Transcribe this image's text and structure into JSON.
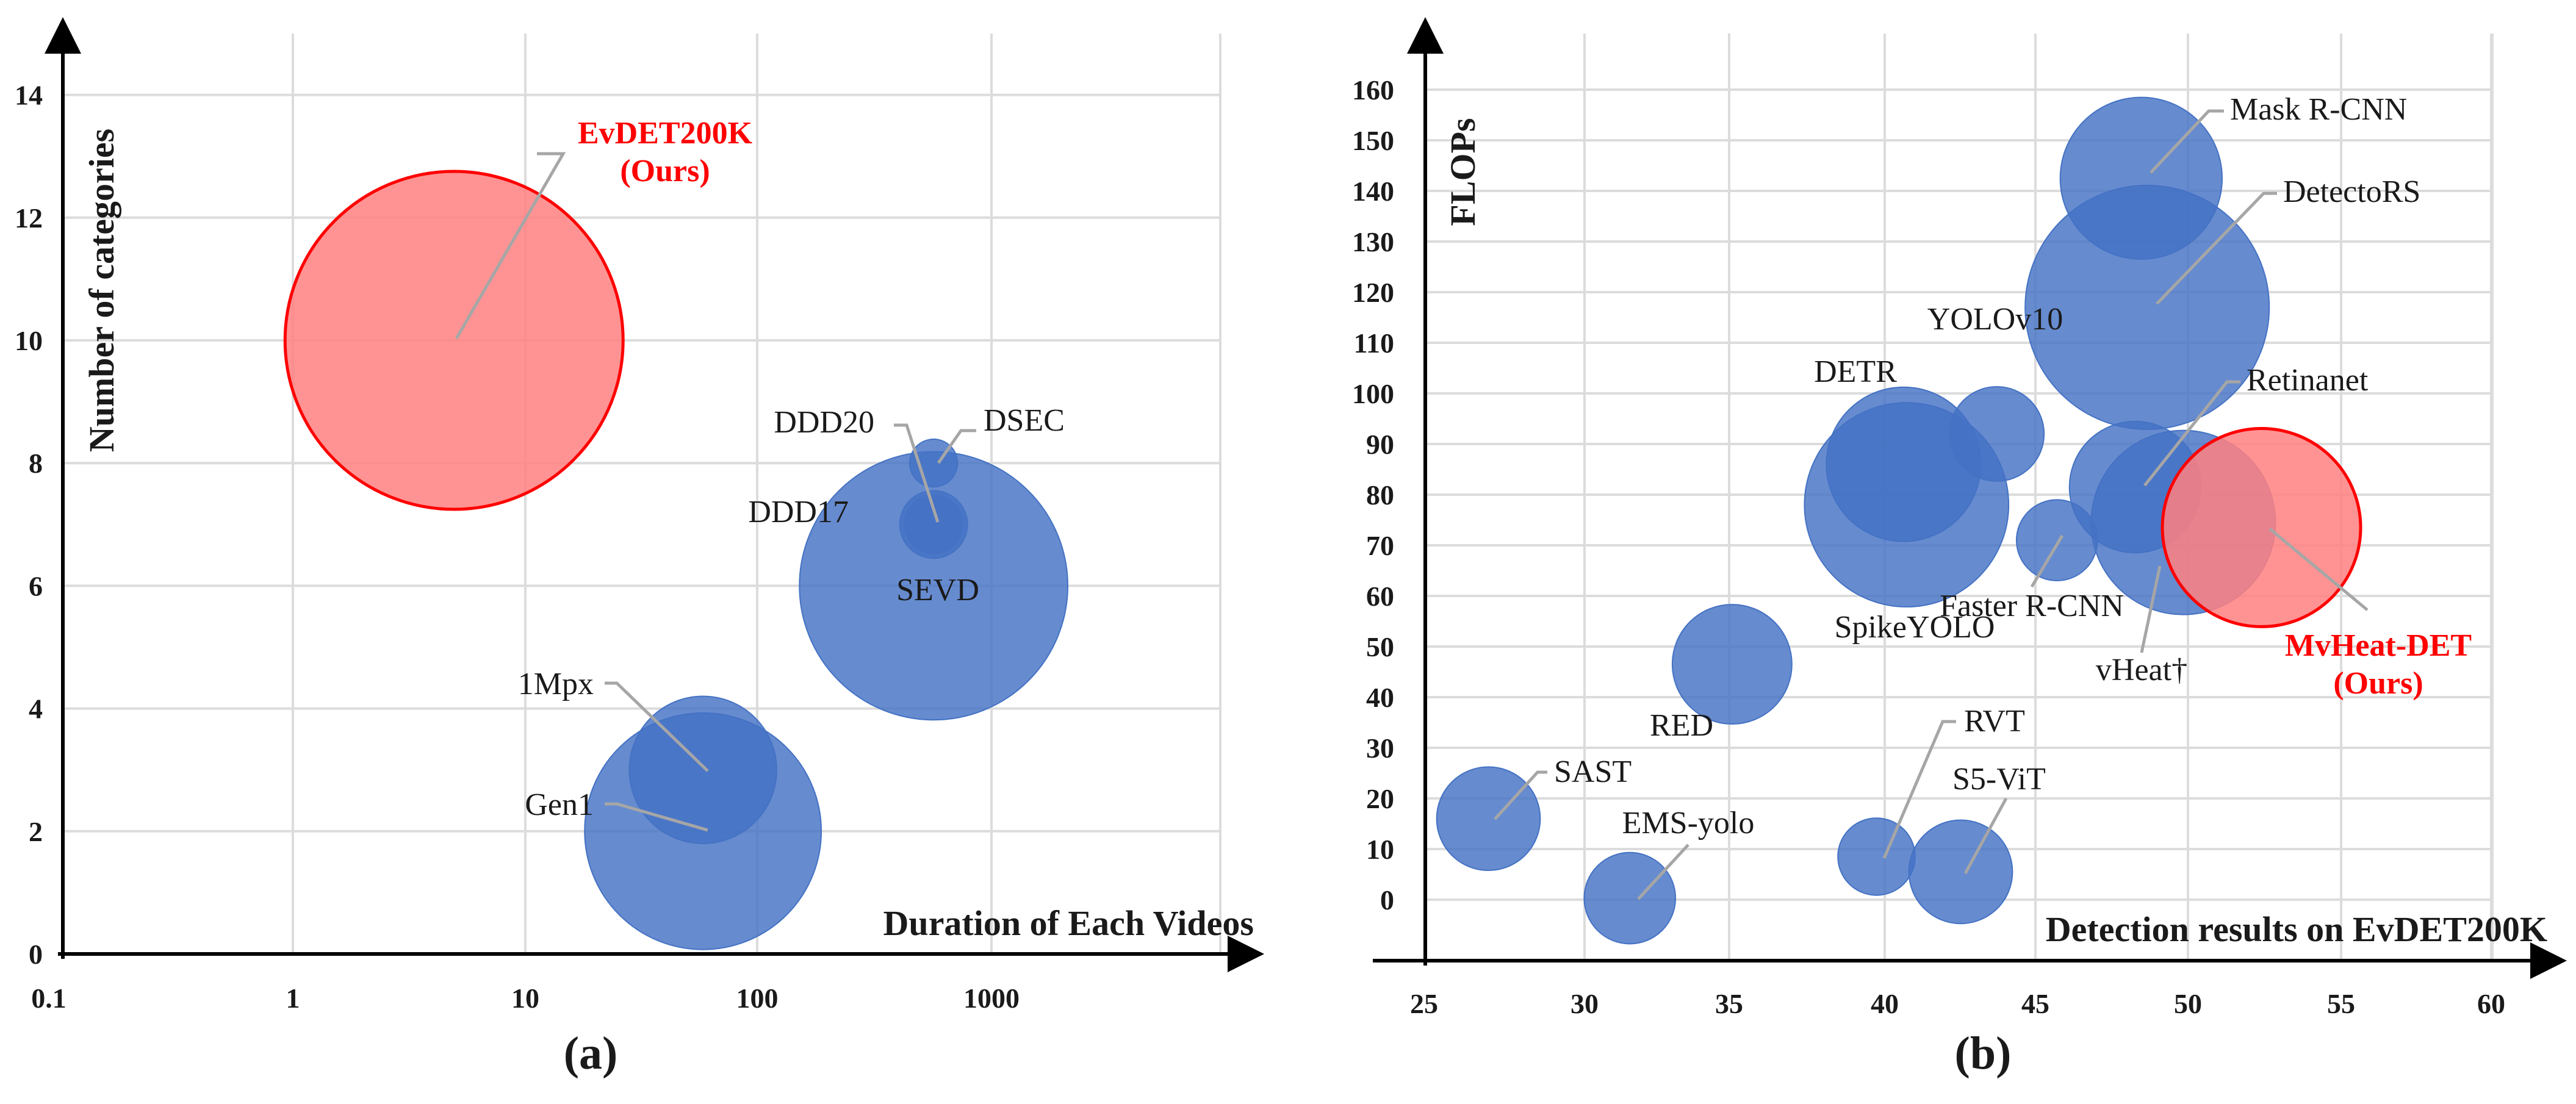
{
  "accent_color": "#ff0000",
  "bubble_color": "#4472c4",
  "ours_fill": "#ff8080",
  "chart_data": [
    {
      "type": "bubble",
      "caption": "(a)",
      "xlabel": "Duration of Each Videos",
      "ylabel": "Number of categories",
      "x_scale": "log",
      "xlim": [
        0.1,
        10000
      ],
      "ylim": [
        0,
        14
      ],
      "x_ticks": [
        "0.1",
        "1",
        "10",
        "100",
        "1000"
      ],
      "y_ticks": [
        "0",
        "2",
        "4",
        "6",
        "8",
        "10",
        "12",
        "14"
      ],
      "grid": true,
      "points": [
        {
          "name": "EvDET200K",
          "sub": "(Ours)",
          "x": 5,
          "y": 10,
          "size": 100,
          "ours": true
        },
        {
          "name": "DSEC",
          "x": 600,
          "y": 8,
          "size": 2
        },
        {
          "name": "DDD20",
          "x": 600,
          "y": 7,
          "size": 4
        },
        {
          "name": "DDD17",
          "x": 600,
          "y": 7,
          "size": 3
        },
        {
          "name": "SEVD",
          "x": 600,
          "y": 6,
          "size": 63
        },
        {
          "name": "1Mpx",
          "x": 60,
          "y": 3,
          "size": 19
        },
        {
          "name": "Gen1",
          "x": 60,
          "y": 2,
          "size": 49
        }
      ]
    },
    {
      "type": "bubble",
      "caption": "(b)",
      "xlabel": "Detection results on EvDET200K",
      "ylabel": "FLOPs",
      "xlim": [
        25,
        60
      ],
      "ylim": [
        0,
        160
      ],
      "x_ticks": [
        "25",
        "30",
        "35",
        "40",
        "45",
        "50",
        "55",
        "60"
      ],
      "y_ticks": [
        "0",
        "10",
        "20",
        "30",
        "40",
        "50",
        "60",
        "70",
        "80",
        "90",
        "100",
        "110",
        "120",
        "130",
        "140",
        "150",
        "160"
      ],
      "grid": true,
      "points": [
        {
          "name": "Mask R-CNN",
          "x": 48.8,
          "y": 142.5,
          "size": 44
        },
        {
          "name": "DetectoRS",
          "x": 49.0,
          "y": 117,
          "size": 100
        },
        {
          "name": "YOLOv10",
          "x": 44.0,
          "y": 92,
          "size": 15
        },
        {
          "name": "DETR",
          "x": 40.9,
          "y": 86,
          "size": 40
        },
        {
          "name": "Retinanet",
          "x": 48.6,
          "y": 81.5,
          "size": 29
        },
        {
          "name": "SpikeYOLO",
          "x": 41.0,
          "y": 78,
          "size": 70
        },
        {
          "name": "vHeat†",
          "x": 50.2,
          "y": 74.5,
          "size": 57
        },
        {
          "name": "Faster R-CNN",
          "x": 46.0,
          "y": 71,
          "size": 11
        },
        {
          "name": "MvHeat-DET",
          "sub": "(Ours)",
          "x": 52.8,
          "y": 73.5,
          "size": 66,
          "ours": true
        },
        {
          "name": "RED",
          "x": 35.2,
          "y": 46.5,
          "size": 24
        },
        {
          "name": "SAST",
          "x": 27.1,
          "y": 16,
          "size": 18
        },
        {
          "name": "RVT",
          "x": 40.0,
          "y": 8.5,
          "size": 10
        },
        {
          "name": "S5-ViT",
          "x": 42.8,
          "y": 5.5,
          "size": 18
        },
        {
          "name": "EMS-yolo",
          "x": 31.8,
          "y": 0.3,
          "size": 14
        }
      ]
    }
  ]
}
